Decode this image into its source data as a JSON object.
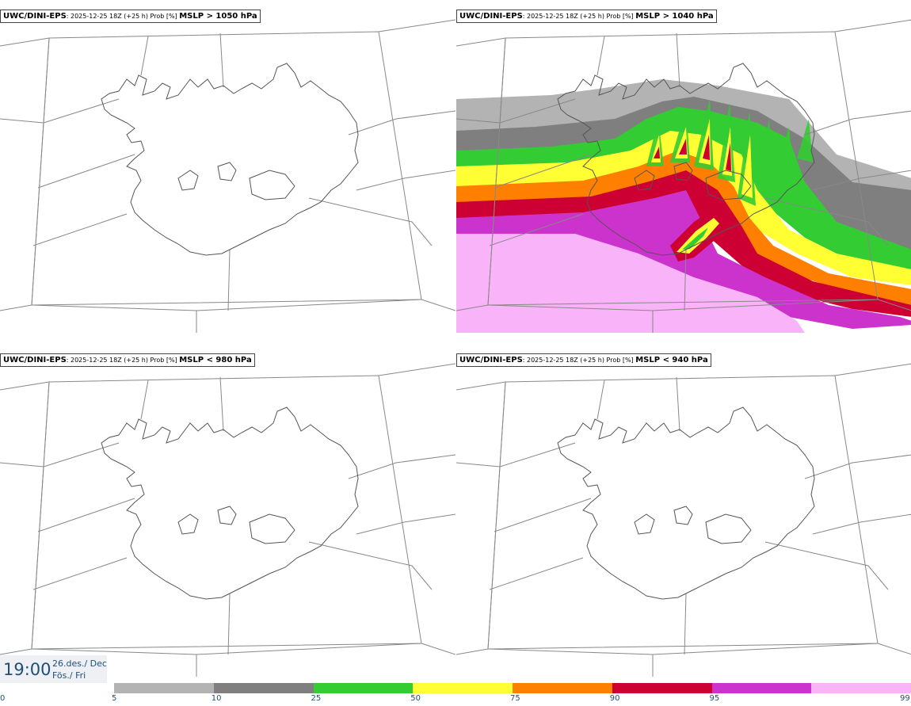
{
  "panels": [
    {
      "model": "UWC/DINI-EPS",
      "meta": ": 2025-12-25 18Z (+25 h) Prob [%] ",
      "threshold": "MSLP > 1050 hPa"
    },
    {
      "model": "UWC/DINI-EPS",
      "meta": ": 2025-12-25 18Z (+25 h) Prob [%] ",
      "threshold": "MSLP > 1040 hPa"
    },
    {
      "model": "UWC/DINI-EPS",
      "meta": ": 2025-12-25 18Z (+25 h) Prob [%] ",
      "threshold": "MSLP < 980 hPa"
    },
    {
      "model": "UWC/DINI-EPS",
      "meta": ": 2025-12-25 18Z (+25 h) Prob [%] ",
      "threshold": "MSLP < 940 hPa"
    }
  ],
  "time": {
    "clock": "19:00",
    "date_line1": "26.des./ Dec",
    "date_line2": "Fös./ Fri"
  },
  "legend": {
    "ticks": [
      "0",
      "5",
      "10",
      "25",
      "50",
      "75",
      "90",
      "95",
      "99"
    ],
    "colors": [
      "#b3b3b3",
      "#7f7f7f",
      "#33cc33",
      "#ffff33",
      "#ff7f00",
      "#cc0033",
      "#cc33cc",
      "#f9b3f9"
    ]
  }
}
